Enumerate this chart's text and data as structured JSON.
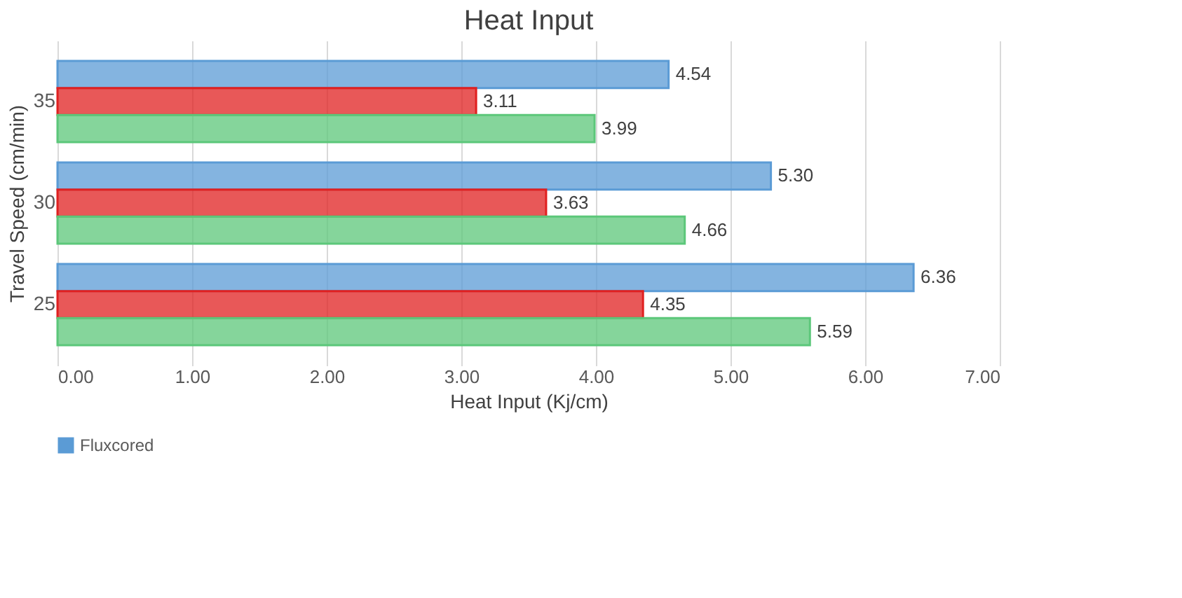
{
  "chart_data": {
    "type": "bar",
    "orientation": "horizontal",
    "title": "Heat Input",
    "xlabel": "Heat Input (Kj/cm)",
    "ylabel": "Travel Speed (cm/min)",
    "categories": [
      "35",
      "30",
      "25"
    ],
    "series": [
      {
        "name": "Fluxcored",
        "color": "#5b9bd5",
        "values": [
          4.54,
          5.3,
          6.36
        ],
        "value_labels": [
          "4.54",
          "5.30",
          "6.36"
        ]
      },
      {
        "color": "#e02020",
        "values": [
          3.11,
          3.63,
          4.35
        ],
        "value_labels": [
          "3.11",
          "3.63",
          "4.35"
        ]
      },
      {
        "color": "#5cc77a",
        "values": [
          3.99,
          4.66,
          5.59
        ],
        "value_labels": [
          "3.99",
          "4.66",
          "5.59"
        ]
      }
    ],
    "xlim": [
      0,
      7
    ],
    "xticks": [
      {
        "value": 0,
        "label": "0.00"
      },
      {
        "value": 1,
        "label": "1.00"
      },
      {
        "value": 2,
        "label": "2.00"
      },
      {
        "value": 3,
        "label": "3.00"
      },
      {
        "value": 4,
        "label": "4.00"
      },
      {
        "value": 5,
        "label": "5.00"
      },
      {
        "value": 6,
        "label": "6.00"
      },
      {
        "value": 7,
        "label": "7.00"
      }
    ],
    "grid": "x",
    "legend": "bottom"
  }
}
